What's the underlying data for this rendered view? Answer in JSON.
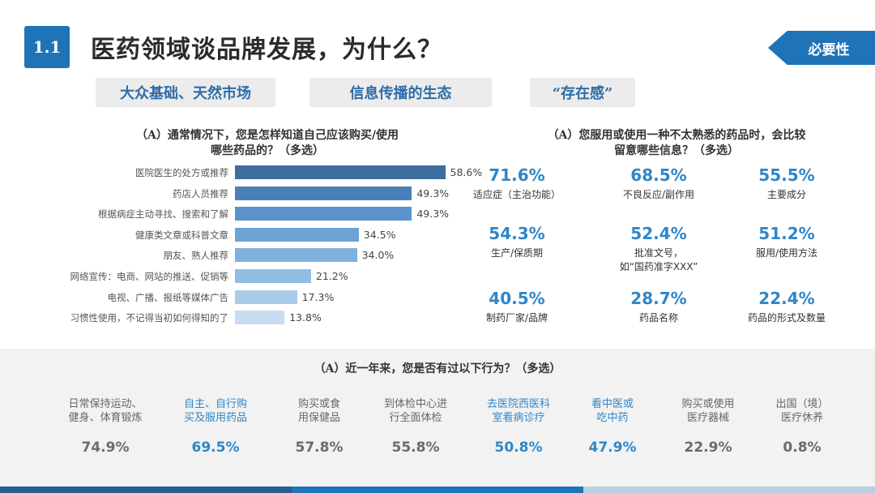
{
  "header": {
    "section": "1.1",
    "title": "医药领域谈品牌发展，为什么？",
    "tag": "必要性"
  },
  "pills": [
    "大众基础、天然市场",
    "信息传播的生态",
    "“存在感”"
  ],
  "left_question": {
    "line1": "（A）通常情况下，您是怎样知道自己应该购买/使用",
    "line2": "哪些药品的？（多选）"
  },
  "chart_data": {
    "type": "bar",
    "orientation": "horizontal",
    "categories": [
      "医院医生的处方或推荐",
      "药店人员推荐",
      "根据病症主动寻找、搜索和了解",
      "健康类文章或科普文章",
      "朋友、熟人推荐",
      "网络宣传：电商、网站的推送、促销等",
      "电视、广播、报纸等媒体广告",
      "习惯性使用，不记得当初如何得知的了"
    ],
    "values": [
      58.6,
      49.3,
      49.3,
      34.5,
      34.0,
      21.2,
      17.3,
      13.8
    ],
    "value_labels": [
      "58.6%",
      "49.3%",
      "49.3%",
      "34.5%",
      "34.0%",
      "21.2%",
      "17.3%",
      "13.8%"
    ],
    "colors": [
      "#3e6e9e",
      "#4a80b8",
      "#5a93cb",
      "#6da3d6",
      "#7fb0de",
      "#92bde3",
      "#a9cbea",
      "#c7dcf1"
    ],
    "xlim": [
      0,
      70
    ]
  },
  "right_question": {
    "line1": "（A）您服用或使用一种不太熟悉的药品时，会比较",
    "line2": "留意哪些信息？（多选）"
  },
  "stats": [
    {
      "value": "71.6%",
      "label": "适应症（主治功能）"
    },
    {
      "value": "68.5%",
      "label": "不良反应/副作用"
    },
    {
      "value": "55.5%",
      "label": "主要成分"
    },
    {
      "value": "54.3%",
      "label": "生产/保质期"
    },
    {
      "value": "52.4%",
      "label": "批准文号，\n如“国药准字XXX”"
    },
    {
      "value": "51.2%",
      "label": "服用/使用方法"
    },
    {
      "value": "40.5%",
      "label": "制药厂家/品牌"
    },
    {
      "value": "28.7%",
      "label": "药品名称"
    },
    {
      "value": "22.4%",
      "label": "药品的形式及数量"
    }
  ],
  "bottom_question": "（A）近一年来，您是否有过以下行为？（多选）",
  "behaviors": [
    {
      "label": "日常保持运动、\n健身、体育锻炼",
      "value": "74.9%",
      "highlight": false
    },
    {
      "label": "自主、自行购\n买及服用药品",
      "value": "69.5%",
      "highlight": true
    },
    {
      "label": "购买或食\n用保健品",
      "value": "57.8%",
      "highlight": false
    },
    {
      "label": "到体检中心进\n行全面体检",
      "value": "55.8%",
      "highlight": false
    },
    {
      "label": "去医院西医科\n室看病诊疗",
      "value": "50.8%",
      "highlight": true
    },
    {
      "label": "看中医或\n吃中药",
      "value": "47.9%",
      "highlight": true
    },
    {
      "label": "购买或使用\n医疗器械",
      "value": "22.9%",
      "highlight": false
    },
    {
      "label": "出国（境）\n医疗休养",
      "value": "0.8%",
      "highlight": false
    }
  ],
  "colors": {
    "accent": "#1f73b7",
    "highlight": "#2f86c8",
    "muted": "#666666",
    "stat_blue": "#2f86c8"
  }
}
